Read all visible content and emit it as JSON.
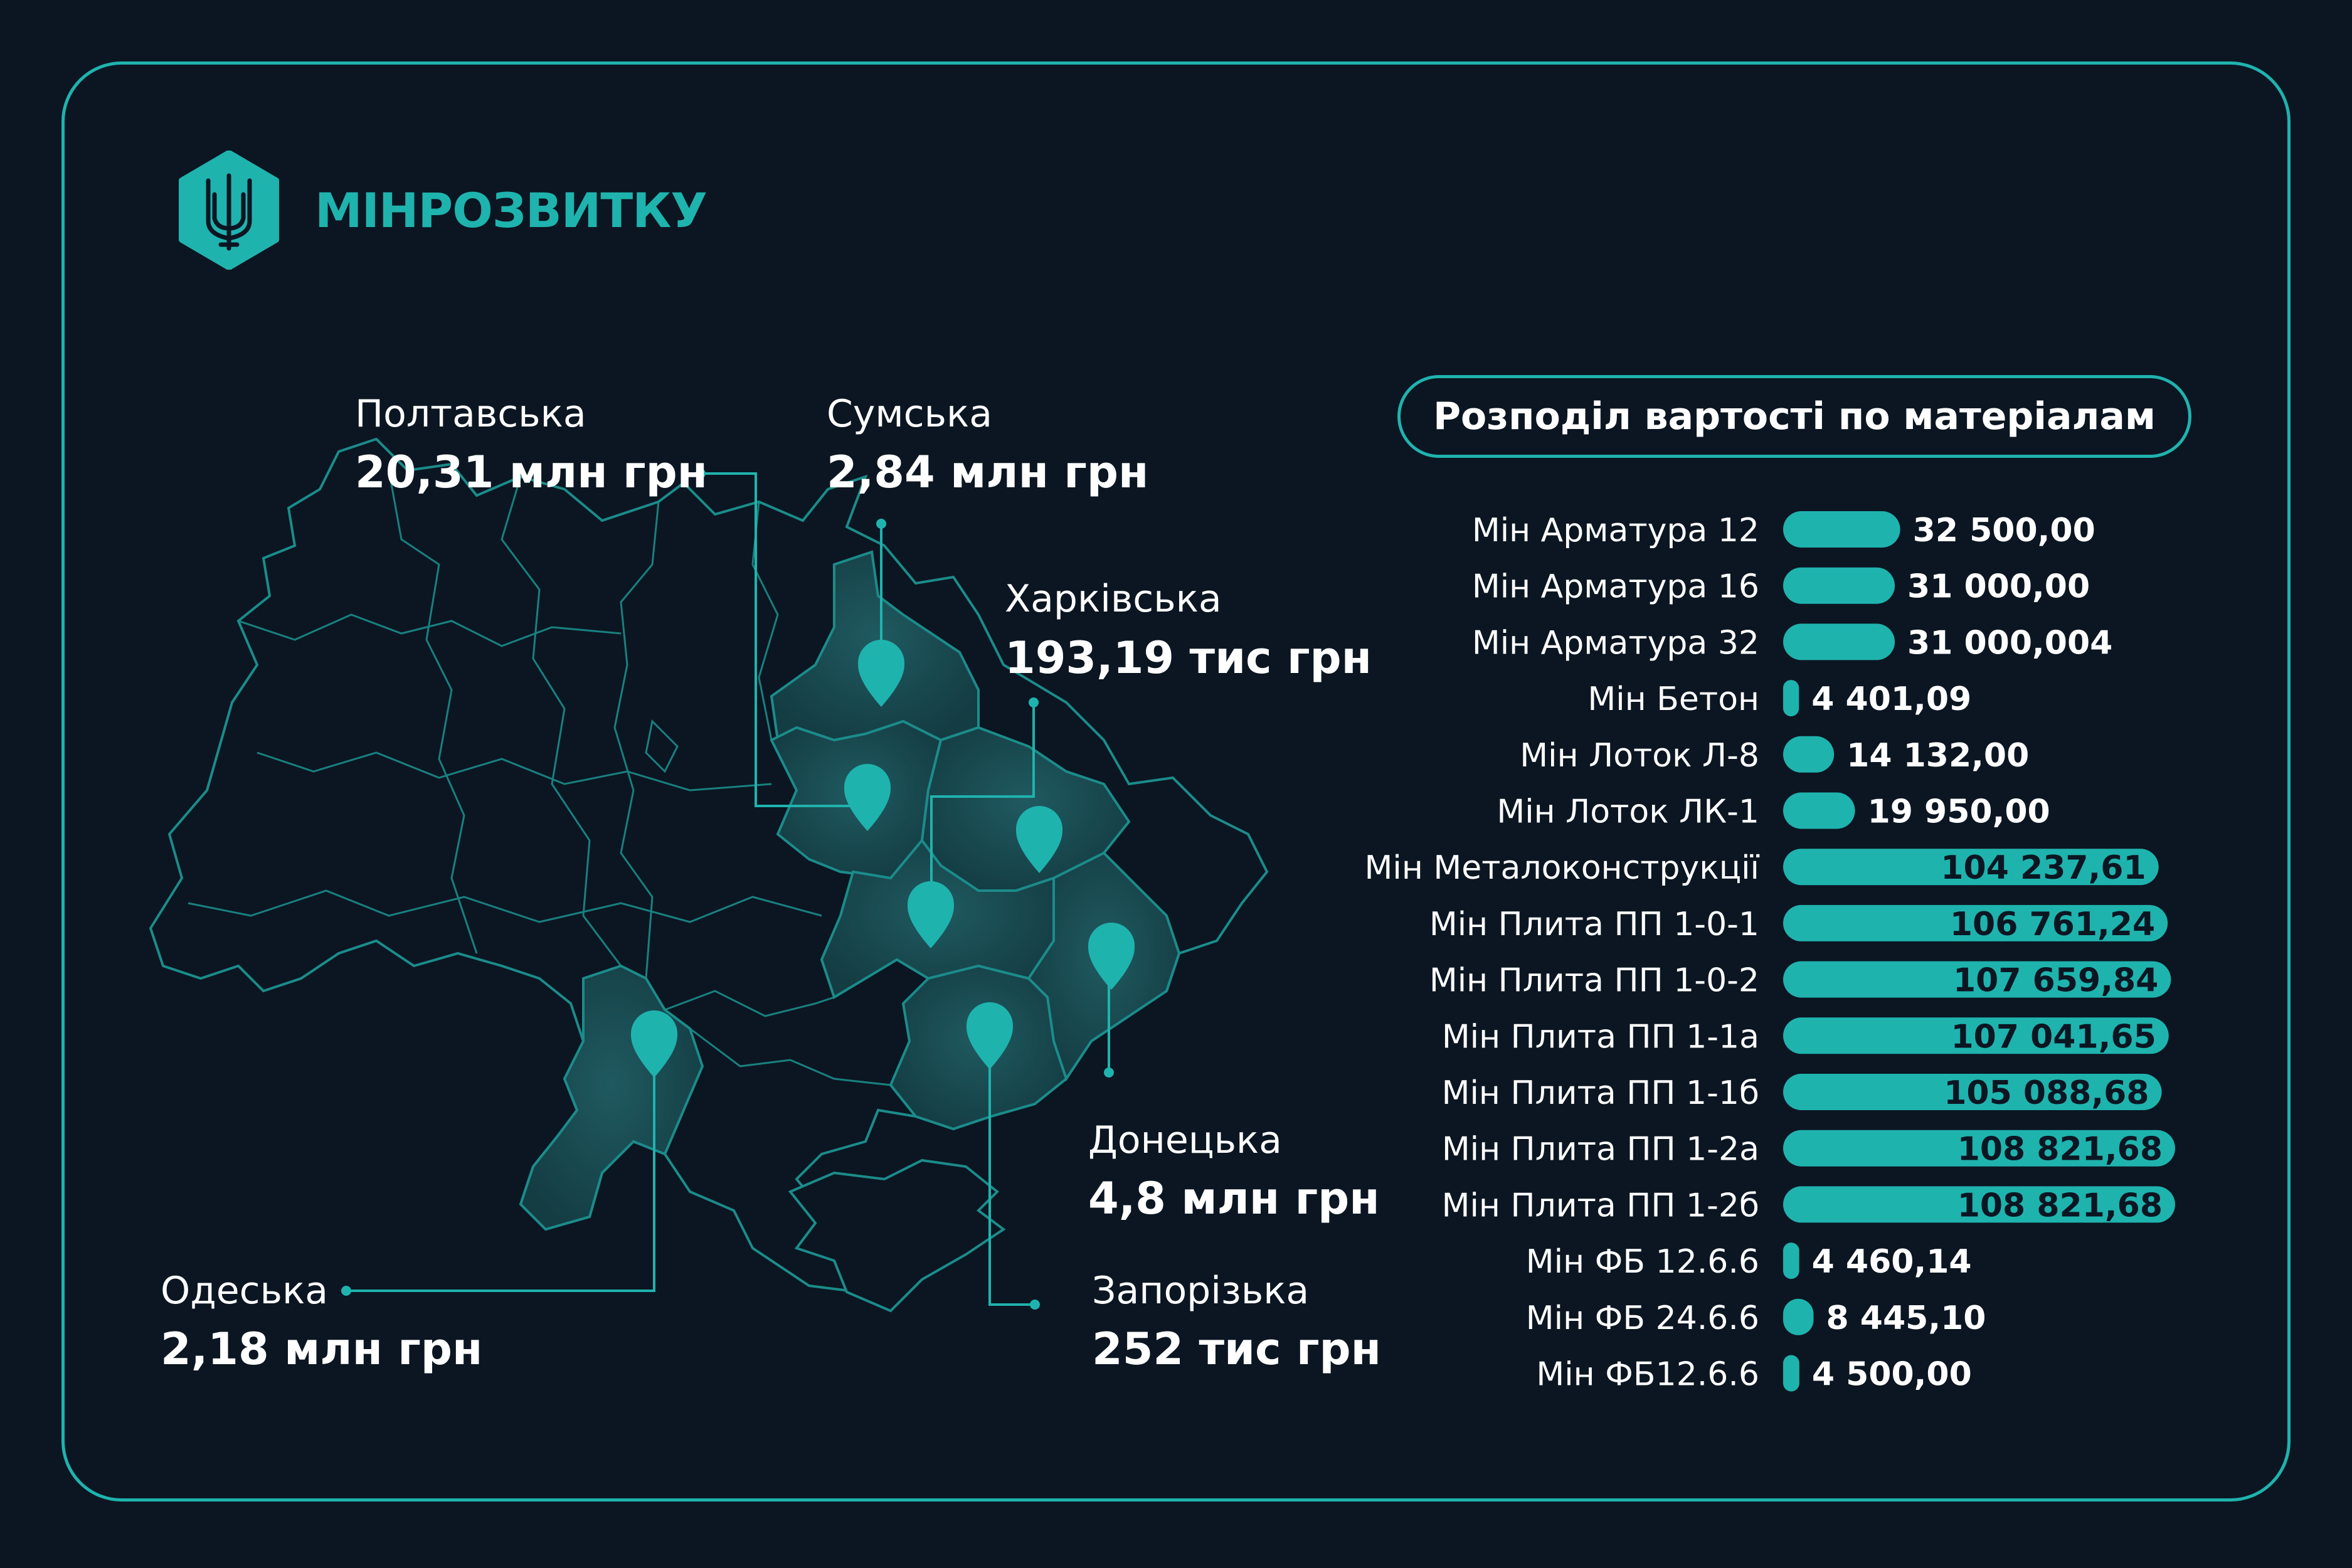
{
  "brand": {
    "name": "МІНРОЗВИТКУ",
    "accent": "#1fb3ae",
    "background": "#0b1622",
    "logo_icon": "trident-hexagon-icon"
  },
  "map": {
    "regions": [
      {
        "id": "poltava",
        "name": "Полтавська",
        "value": "20,31 млн грн"
      },
      {
        "id": "sumy",
        "name": "Сумська",
        "value": "2,84 млн грн"
      },
      {
        "id": "kharkiv",
        "name": "Харківська",
        "value": "193,19 тис грн"
      },
      {
        "id": "donetsk",
        "name": "Донецька",
        "value": "4,8 млн грн"
      },
      {
        "id": "zaporizhzhia",
        "name": "Запорізька",
        "value": "252 тис грн"
      },
      {
        "id": "odesa",
        "name": "Одеська",
        "value": "2,18 млн грн"
      }
    ]
  },
  "chart_data": {
    "type": "bar",
    "orientation": "horizontal",
    "title": "Розподіл вартості по матеріалам",
    "categories": [
      "Мін Арматура 12",
      "Мін Арматура 16",
      "Мін Арматура 32",
      "Мін Бетон",
      "Мін Лоток Л-8",
      "Мін Лоток ЛК-1",
      "Мін Металоконструкції",
      "Мін Плита ПП 1-0-1",
      "Мін Плита ПП 1-0-2",
      "Мін Плита ПП 1-1а",
      "Мін Плита ПП 1-1б",
      "Мін Плита ПП 1-2а",
      "Мін Плита ПП 1-2б",
      "Мін ФБ 12.6.6",
      "Мін ФБ 24.6.6",
      "Мін ФБ12.6.6"
    ],
    "values": [
      32500.0,
      31000.0,
      31000.004,
      4401.09,
      14132.0,
      19950.0,
      104237.61,
      106761.24,
      107659.84,
      107041.65,
      105088.68,
      108821.68,
      108821.68,
      4460.14,
      8445.1,
      4500.0
    ],
    "value_labels": [
      "32 500,00",
      "31 000,00",
      "31 000,004",
      "4 401,09",
      "14 132,00",
      "19 950,00",
      "104 237,61",
      "106 761,24",
      "107 659,84",
      "107 041,65",
      "105 088,68",
      "108 821,68",
      "108 821,68",
      "4 460,14",
      "8 445,10",
      "4 500,00"
    ],
    "bar_color": "#1fb3ae",
    "grid": false
  }
}
